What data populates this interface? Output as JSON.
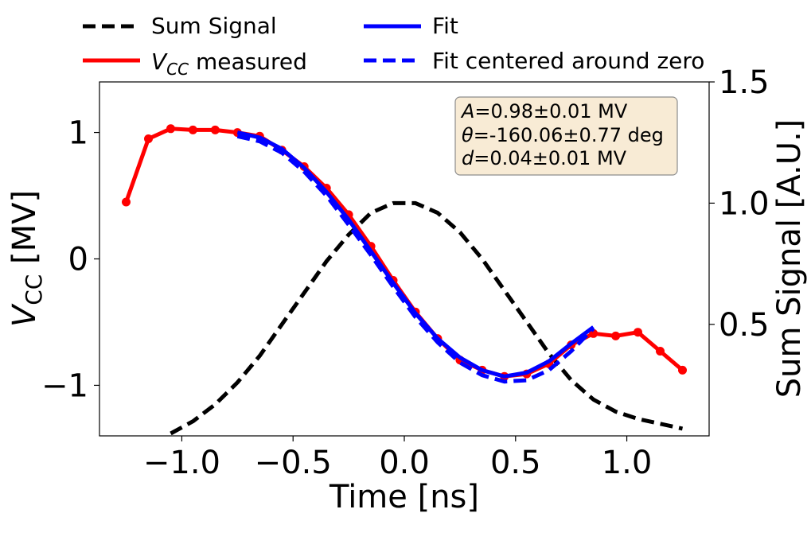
{
  "chart_data": {
    "type": "line",
    "xlabel": "Time [ns]",
    "ylabel": {
      "main": "V",
      "sub": "CC",
      "unit": " [MV]"
    },
    "y2label": "Sum Signal [A.U.]",
    "xlim": [
      -1.37,
      1.37
    ],
    "ylim": [
      -1.4,
      1.4
    ],
    "y2lim": [
      0.04,
      1.5
    ],
    "x_ticks": [
      -1.0,
      -0.5,
      0.0,
      0.5,
      1.0
    ],
    "x_tick_labels": [
      "−1.0",
      "−0.5",
      "0.0",
      "0.5",
      "1.0"
    ],
    "y_ticks": [
      1,
      0,
      -1
    ],
    "y_tick_labels": [
      "1",
      "0",
      "−1"
    ],
    "y2_ticks": [
      1.5,
      1.0,
      0.5
    ],
    "y2_tick_labels": [
      "1.5",
      "1.0",
      "0.5"
    ],
    "legend": {
      "placement": "top",
      "entries": [
        {
          "label": "Sum Signal",
          "color": "#000000",
          "style": "dashed"
        },
        {
          "label": "Fit",
          "color": "#0000ff",
          "style": "solid"
        },
        {
          "label_main": "V",
          "label_sub": "CC",
          "label_rest": " measured",
          "color": "#ff0000",
          "style": "solid"
        },
        {
          "label": "Fit centered around zero",
          "color": "#0000ff",
          "style": "dashed"
        }
      ]
    },
    "annotation": {
      "lines": [
        {
          "var": "A",
          "text": "=0.98±0.01 MV"
        },
        {
          "var": "θ",
          "text": "=-160.06±0.77 deg"
        },
        {
          "var": "d",
          "text": "=0.04±0.01 MV"
        }
      ]
    },
    "series": [
      {
        "name": "Sum Signal",
        "axis": "right",
        "color": "#000000",
        "style": "dashed",
        "x": [
          -1.05,
          -0.95,
          -0.85,
          -0.75,
          -0.65,
          -0.55,
          -0.45,
          -0.35,
          -0.25,
          -0.15,
          -0.05,
          0.05,
          0.15,
          0.25,
          0.35,
          0.45,
          0.55,
          0.65,
          0.75,
          0.85,
          0.95,
          1.05,
          1.15,
          1.25
        ],
        "y": [
          0.05,
          0.1,
          0.17,
          0.26,
          0.37,
          0.5,
          0.63,
          0.76,
          0.87,
          0.96,
          1.0,
          1.0,
          0.96,
          0.88,
          0.77,
          0.64,
          0.51,
          0.38,
          0.27,
          0.19,
          0.14,
          0.11,
          0.09,
          0.07
        ]
      },
      {
        "name": "V_CC measured",
        "axis": "left",
        "color": "#ff0000",
        "style": "solid",
        "markers": true,
        "x": [
          -1.25,
          -1.15,
          -1.05,
          -0.95,
          -0.85,
          -0.75,
          -0.65,
          -0.55,
          -0.45,
          -0.35,
          -0.25,
          -0.15,
          -0.05,
          0.05,
          0.15,
          0.25,
          0.35,
          0.45,
          0.55,
          0.65,
          0.75,
          0.85,
          0.95,
          1.05,
          1.15,
          1.25
        ],
        "y": [
          0.45,
          0.95,
          1.03,
          1.02,
          1.02,
          1.0,
          0.97,
          0.86,
          0.73,
          0.56,
          0.35,
          0.1,
          -0.17,
          -0.42,
          -0.63,
          -0.8,
          -0.88,
          -0.93,
          -0.91,
          -0.83,
          -0.68,
          -0.59,
          -0.61,
          -0.58,
          -0.73,
          -0.88
        ]
      },
      {
        "name": "Fit",
        "axis": "left",
        "color": "#0000ff",
        "style": "solid",
        "x": [
          -0.75,
          -0.65,
          -0.55,
          -0.45,
          -0.35,
          -0.25,
          -0.15,
          -0.05,
          0.05,
          0.15,
          0.25,
          0.35,
          0.45,
          0.55,
          0.65,
          0.75,
          0.85
        ],
        "y": [
          1.0,
          0.96,
          0.87,
          0.72,
          0.53,
          0.31,
          0.06,
          -0.19,
          -0.43,
          -0.63,
          -0.78,
          -0.88,
          -0.93,
          -0.9,
          -0.81,
          -0.67,
          -0.54
        ]
      },
      {
        "name": "Fit centered around zero",
        "axis": "left",
        "color": "#0000ff",
        "style": "dashed",
        "x": [
          -0.75,
          -0.65,
          -0.55,
          -0.45,
          -0.35,
          -0.25,
          -0.15,
          -0.05,
          0.05,
          0.15,
          0.25,
          0.35,
          0.45,
          0.55,
          0.65,
          0.75,
          0.85
        ],
        "y": [
          0.97,
          0.93,
          0.84,
          0.69,
          0.5,
          0.27,
          0.03,
          -0.22,
          -0.46,
          -0.66,
          -0.82,
          -0.92,
          -0.97,
          -0.96,
          -0.88,
          -0.73,
          -0.55
        ]
      }
    ]
  }
}
